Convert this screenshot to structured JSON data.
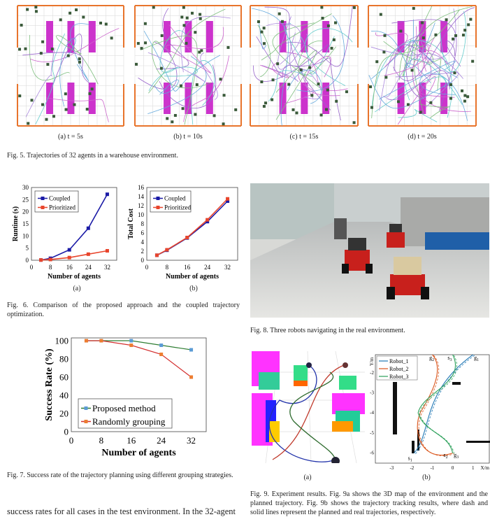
{
  "fig5": {
    "panels": [
      {
        "label": "(a) t = 5s"
      },
      {
        "label": "(b) t = 10s"
      },
      {
        "label": "(c) t = 15s"
      },
      {
        "label": "(d) t = 20s"
      }
    ],
    "caption": "Fig. 5.    Trajectories of 32 agents in a warehouse environment.",
    "colors": {
      "shelf": "#cc33cc",
      "border": "#e8742c"
    }
  },
  "fig6": {
    "sub_a": "(a)",
    "sub_b": "(b)",
    "caption": "Fig. 6.    Comparison of the proposed approach and the coupled trajectory optimization."
  },
  "fig7": {
    "caption": "Fig. 7.    Success rate of the trajectory planning using different grouping strategies."
  },
  "fig8": {
    "caption": "Fig. 8.    Three robots navigating in the real environment."
  },
  "fig9": {
    "sub_a": "(a)",
    "sub_b": "(b)",
    "caption": "Fig. 9.    Experiment results. Fig. 9a shows the 3D map of the environment and the planned trajectory. Fig. 9b shows the trajectory tracking results, where dash and solid lines represent the planned and real trajectories, respectively.",
    "legend": [
      "Robot_1",
      "Robot_2",
      "Robot_3"
    ],
    "colors": [
      "#1f77b4",
      "#d9541a",
      "#2ca05a"
    ],
    "xticks": [
      "-3",
      "-2",
      "-1",
      "0",
      "1"
    ],
    "xlabel": "X/m",
    "yticks": [
      "-2",
      "-3",
      "-4",
      "-5",
      "-6"
    ],
    "ylabel": "Y/m",
    "labels": [
      "g2",
      "s3",
      "g1",
      "s1",
      "s2",
      "g3"
    ]
  },
  "body_text": "success rates for all cases in the test environment. In the 32-agent",
  "chart_data": [
    {
      "type": "line",
      "x": [
        4,
        8,
        16,
        24,
        32
      ],
      "xticks": [
        0,
        8,
        16,
        24,
        32
      ],
      "xlim": [
        0,
        36
      ],
      "ylim": [
        0,
        30
      ],
      "yticks": [
        0,
        5,
        10,
        15,
        20,
        25,
        30
      ],
      "xlabel": "Number of agents",
      "ylabel": "Runtime (s)",
      "legend": "top-left",
      "series": [
        {
          "name": "Coupled",
          "values": [
            0.1,
            0.8,
            4.3,
            13.2,
            27.2
          ],
          "color": "#1a1aa6"
        },
        {
          "name": "Prioritized",
          "values": [
            0.1,
            0.3,
            1.1,
            2.5,
            3.9
          ],
          "color": "#e8452c"
        }
      ]
    },
    {
      "type": "line",
      "x": [
        4,
        8,
        16,
        24,
        32
      ],
      "xticks": [
        0,
        8,
        16,
        24,
        32
      ],
      "xlim": [
        0,
        36
      ],
      "ylim": [
        0,
        16
      ],
      "yticks": [
        0,
        2,
        4,
        6,
        8,
        10,
        12,
        14,
        16
      ],
      "xlabel": "Number of agents",
      "ylabel": "Total Cost",
      "legend": "top-left",
      "series": [
        {
          "name": "Coupled",
          "values": [
            1.1,
            2.2,
            4.9,
            8.5,
            13.0
          ],
          "color": "#1a1aa6"
        },
        {
          "name": "Prioritized",
          "values": [
            1.1,
            2.3,
            5.0,
            8.9,
            13.5
          ],
          "color": "#e8452c"
        }
      ]
    },
    {
      "type": "line",
      "x": [
        4,
        8,
        16,
        24,
        32
      ],
      "xticks": [
        0,
        8,
        16,
        24,
        32
      ],
      "xlim": [
        0,
        36
      ],
      "ylim": [
        0,
        100
      ],
      "yticks": [
        0,
        20,
        40,
        60,
        80,
        100
      ],
      "xlabel": "Number of agents",
      "ylabel": "Success Rate (%)",
      "legend": "bottom-left",
      "series": [
        {
          "name": "Proposed method",
          "values": [
            100,
            100,
            100,
            95,
            90
          ],
          "color": "#5b9bd5",
          "line": "#2e7d32"
        },
        {
          "name": "Randomly grouping",
          "values": [
            100,
            100,
            95,
            85,
            60
          ],
          "color": "#ed7d31",
          "line": "#d32f2f"
        }
      ]
    }
  ]
}
